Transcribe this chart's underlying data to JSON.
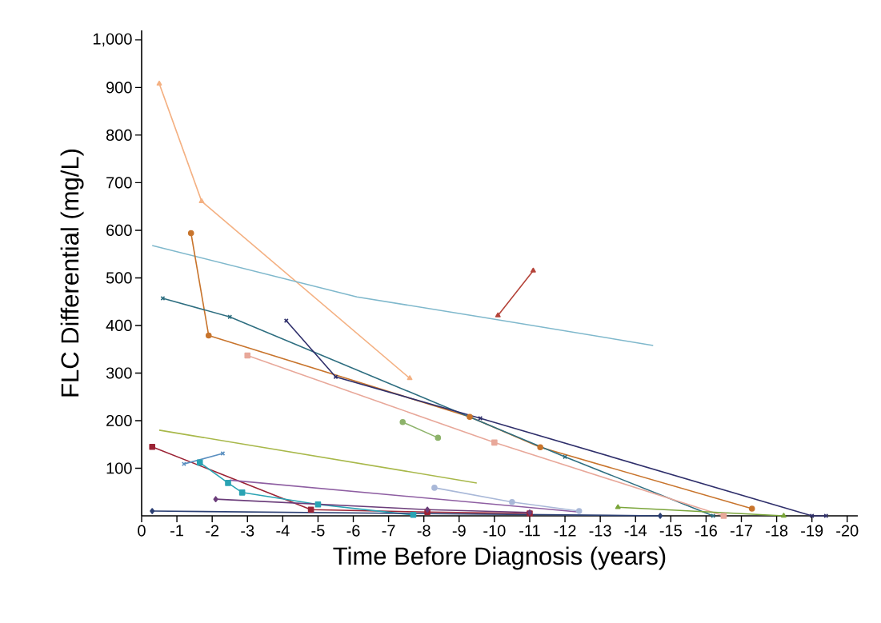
{
  "chart_data": {
    "type": "line",
    "xlabel": "Time Before Diagnosis (years)",
    "ylabel": "FLC Differential (mg/L)",
    "xlim": [
      0,
      -20.3
    ],
    "ylim": [
      0,
      1020
    ],
    "xticks": [
      0,
      -1,
      -2,
      -3,
      -4,
      -5,
      -6,
      -7,
      -8,
      -9,
      -10,
      -11,
      -12,
      -13,
      -14,
      -15,
      -16,
      -17,
      -18,
      -19,
      -20
    ],
    "yticks": [
      100,
      200,
      300,
      400,
      500,
      600,
      700,
      800,
      900,
      {
        "value": 1000,
        "label": "1,000"
      }
    ],
    "series": [
      {
        "color": "#f4b183",
        "marker": "triangle",
        "x": [
          -0.5,
          -1.7,
          -7.6
        ],
        "values": [
          908,
          661,
          289
        ]
      },
      {
        "color": "#7fb8cc",
        "marker": "none",
        "x": [
          -0.3,
          -6.1,
          -9.6,
          -14.5
        ],
        "values": [
          568,
          460,
          418,
          358
        ]
      },
      {
        "color": "#b5443a",
        "marker": "triangle",
        "x": [
          -10.1,
          -11.1
        ],
        "values": [
          421,
          515
        ]
      },
      {
        "color": "#c8742c",
        "marker": "circle",
        "x": [
          -1.4,
          -1.9,
          -9.3,
          -11.3,
          -17.3
        ],
        "values": [
          594,
          379,
          208,
          144,
          15
        ]
      },
      {
        "color": "#2e6e80",
        "marker": "cross",
        "x": [
          -0.6,
          -2.5,
          -12.0,
          -16.2
        ],
        "values": [
          457,
          418,
          124,
          0
        ]
      },
      {
        "color": "#2f2f6b",
        "marker": "cross",
        "x": [
          -4.1,
          -5.5,
          -9.6,
          -19.0,
          -19.4
        ],
        "values": [
          410,
          292,
          205,
          0,
          0
        ]
      },
      {
        "color": "#e8a89a",
        "marker": "square",
        "x": [
          -3.0,
          -10.0,
          -16.5
        ],
        "values": [
          337,
          154,
          0
        ]
      },
      {
        "color": "#8db36a",
        "marker": "circle",
        "x": [
          -7.4,
          -8.4
        ],
        "values": [
          197,
          164
        ]
      },
      {
        "color": "#a8b84a",
        "marker": "none",
        "x": [
          -0.5,
          -9.5
        ],
        "values": [
          180,
          69
        ]
      },
      {
        "color": "#9b2335",
        "marker": "square",
        "x": [
          -0.3,
          -4.8,
          -8.1,
          -11.0
        ],
        "values": [
          145,
          13,
          8,
          5
        ]
      },
      {
        "color": "#5a8fc0",
        "marker": "cross",
        "x": [
          -1.2,
          -2.3
        ],
        "values": [
          109,
          131
        ]
      },
      {
        "color": "#2aa3b3",
        "marker": "square",
        "x": [
          -1.65,
          -2.45,
          -2.85,
          -5.0,
          -7.7
        ],
        "values": [
          112,
          69,
          49,
          24,
          2
        ]
      },
      {
        "color": "#8e5ea2",
        "marker": "none",
        "x": [
          -2.5,
          -12.4
        ],
        "values": [
          75,
          8
        ]
      },
      {
        "color": "#6b3d7a",
        "marker": "diamond",
        "x": [
          -2.1,
          -8.1,
          -11.0
        ],
        "values": [
          35,
          13,
          7
        ]
      },
      {
        "color": "#a9b8d8",
        "marker": "circle",
        "x": [
          -8.3,
          -10.5,
          -12.4
        ],
        "values": [
          59,
          29,
          10
        ]
      },
      {
        "color": "#7aa53a",
        "marker": "triangle",
        "x": [
          -13.5,
          -18.2
        ],
        "values": [
          18,
          0
        ]
      },
      {
        "color": "#2b3f73",
        "marker": "diamond",
        "x": [
          -0.3,
          -14.7
        ],
        "values": [
          10,
          0
        ]
      }
    ]
  }
}
